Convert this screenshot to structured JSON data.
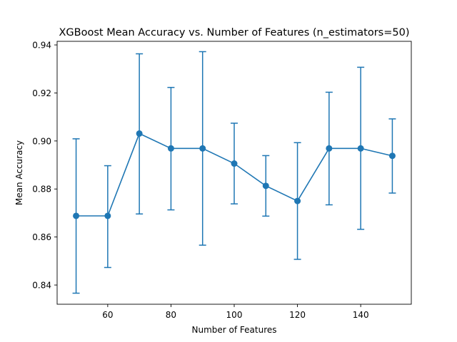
{
  "chart_data": {
    "type": "line",
    "title": "XGBoost Mean Accuracy vs. Number of Features (n_estimators=50)",
    "xlabel": "Number of Features",
    "ylabel": "Mean Accuracy",
    "xlim": [
      44,
      156
    ],
    "ylim": [
      0.832,
      0.9415
    ],
    "xticks": [
      60,
      80,
      100,
      120,
      140
    ],
    "yticks": [
      0.84,
      0.86,
      0.88,
      0.9,
      0.92,
      0.94
    ],
    "ytick_labels": [
      "0.84",
      "0.86",
      "0.88",
      "0.90",
      "0.92",
      "0.94"
    ],
    "grid": false,
    "color": "#1f77b4",
    "series": [
      {
        "x": [
          50,
          60,
          70,
          80,
          90,
          100,
          110,
          120,
          130,
          140,
          150
        ],
        "y": [
          0.8688,
          0.8688,
          0.9031,
          0.8969,
          0.8969,
          0.8906,
          0.8813,
          0.875,
          0.8969,
          0.8969,
          0.8938
        ],
        "err_upper": [
          0.9009,
          0.8897,
          0.9363,
          0.9223,
          0.9372,
          0.9074,
          0.8939,
          0.8993,
          0.9203,
          0.9307,
          0.9092
        ],
        "err_lower": [
          0.8366,
          0.8473,
          0.8696,
          0.8713,
          0.8566,
          0.8738,
          0.8687,
          0.8507,
          0.8734,
          0.8632,
          0.8783
        ]
      }
    ]
  }
}
